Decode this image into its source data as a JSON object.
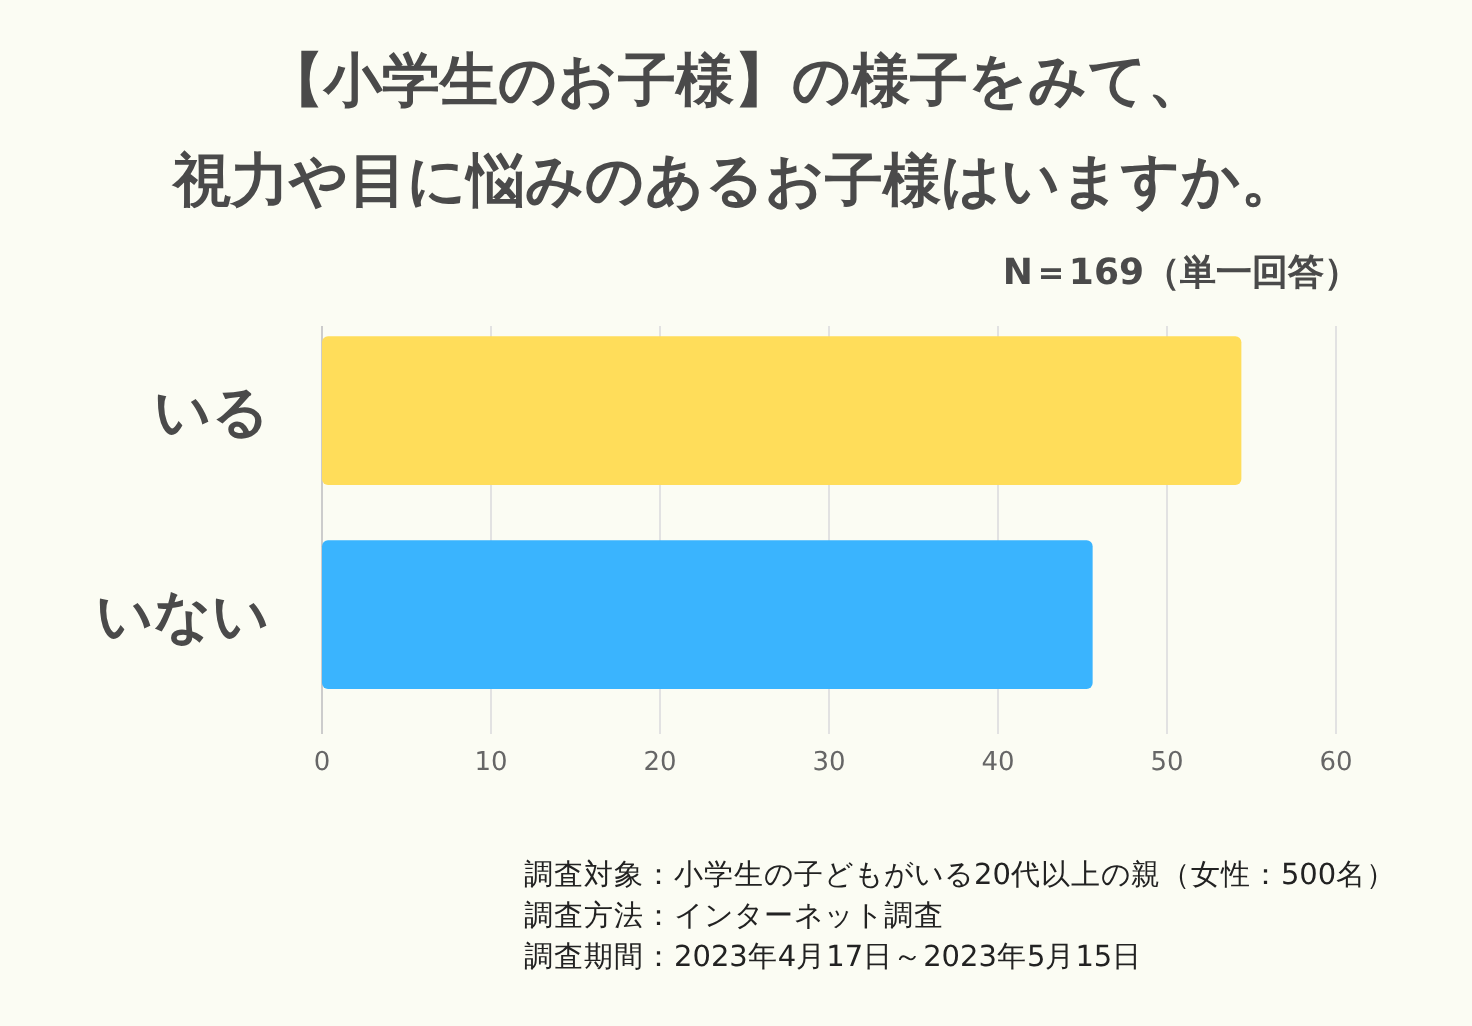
{
  "chart_data": {
    "type": "bar",
    "orientation": "horizontal",
    "title": "【小学生のお子様】の様子をみて、視力や目に悩みのあるお子様はいますか。",
    "subtitle": "N＝169（単一回答）",
    "categories": [
      "いる",
      "いない"
    ],
    "values": [
      54.4,
      45.6
    ],
    "colors": [
      "#ffdd5a",
      "#3ab4fe"
    ],
    "xlim": [
      0,
      60
    ],
    "xticks": [
      0,
      10,
      20,
      30,
      40,
      50,
      60
    ],
    "grid": "x",
    "annotations": [
      "調査対象：小学生の子どもがいる20代以上の親（女性：500名）",
      "調査方法：インターネット調査",
      "調査期間：2023年4月17日～2023年5月15日"
    ]
  }
}
